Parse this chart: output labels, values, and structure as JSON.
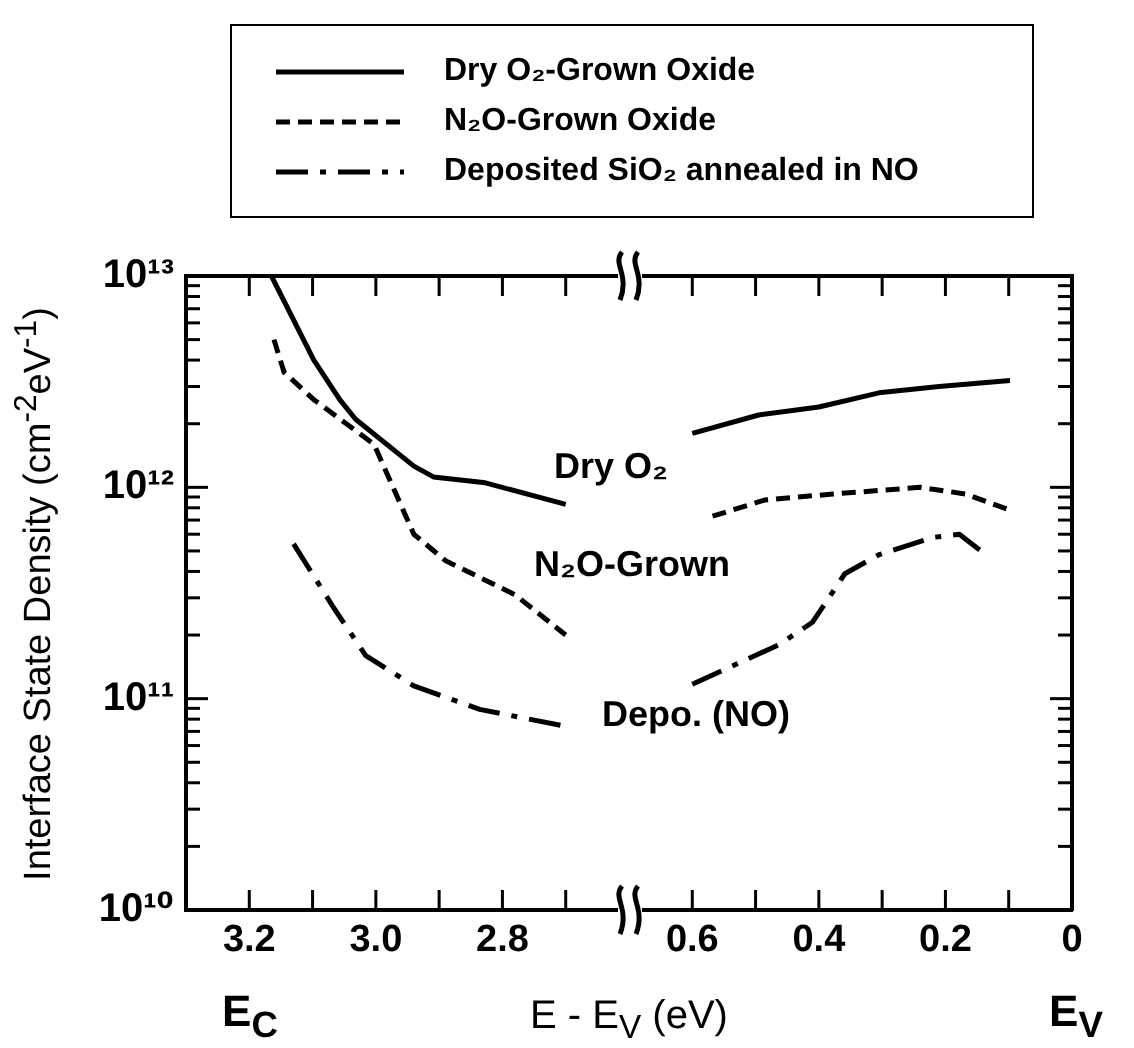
{
  "chart_data": [
    {
      "type": "line",
      "xlabel": "E - E$_{V}$ (eV)",
      "ylabel": "Interface State Density (cm$^{-2}$eV$^{-1}$)",
      "legend": "top",
      "log": "y",
      "tick_labels": "xy",
      "xlim": [
        3.3,
        2.6
      ],
      "xticks": [
        {
          "value": 3.2,
          "label": "3.2"
        },
        {
          "value": 3.1,
          "label": null
        },
        {
          "value": 3.0,
          "label": "3.0"
        },
        {
          "value": 2.9,
          "label": null
        },
        {
          "value": 2.8,
          "label": "2.8"
        },
        {
          "value": 2.7,
          "label": null
        }
      ],
      "ylim": [
        10000000000.0,
        10000000000000.0
      ],
      "yticks": [
        {
          "value": 10000000000.0,
          "label": "10¹⁰"
        },
        {
          "value": 20000000000.0,
          "label": null
        },
        {
          "value": 30000000000.0,
          "label": null
        },
        {
          "value": 40000000000.0,
          "label": null
        },
        {
          "value": 50000000000.0,
          "label": null
        },
        {
          "value": 60000000000.0,
          "label": null
        },
        {
          "value": 70000000000.0,
          "label": null
        },
        {
          "value": 80000000000.0,
          "label": null
        },
        {
          "value": 90000000000.0,
          "label": null
        },
        {
          "value": 100000000000.0,
          "label": "10¹¹"
        },
        {
          "value": 200000000000.0,
          "label": null
        },
        {
          "value": 300000000000.0,
          "label": null
        },
        {
          "value": 400000000000.0,
          "label": null
        },
        {
          "value": 500000000000.0,
          "label": null
        },
        {
          "value": 600000000000.0,
          "label": null
        },
        {
          "value": 700000000000.0,
          "label": null
        },
        {
          "value": 800000000000.0,
          "label": null
        },
        {
          "value": 900000000000.0,
          "label": null
        },
        {
          "value": 1000000000000.0,
          "label": "10¹²"
        },
        {
          "value": 2000000000000.0,
          "label": null
        },
        {
          "value": 3000000000000.0,
          "label": null
        },
        {
          "value": 4000000000000.0,
          "label": null
        },
        {
          "value": 5000000000000.0,
          "label": null
        },
        {
          "value": 6000000000000.0,
          "label": null
        },
        {
          "value": 7000000000000.0,
          "label": null
        },
        {
          "value": 8000000000000.0,
          "label": null
        },
        {
          "value": 9000000000000.0,
          "label": null
        },
        {
          "value": 10000000000000.0,
          "label": "10¹³"
        }
      ],
      "series": [
        {
          "name": "Dry O₂-Grown Oxide",
          "color": "#000000",
          "line_style": "solid",
          "x": [
            3.165,
            3.098,
            3.057,
            3.032,
            2.94,
            2.909,
            2.827,
            2.7
          ],
          "values": [
            10000000000000.0,
            4000000000000.0,
            2600000000000.0,
            2100000000000.0,
            1260000000000.0,
            1120000000000.0,
            1050000000000.0,
            830000000000.0
          ]
        },
        {
          "name": "N₂O-Grown Oxide",
          "color": "#000000",
          "line_style": "dashed",
          "x": [
            3.161,
            3.145,
            3.098,
            3.003,
            2.94,
            2.89,
            2.78,
            2.7
          ],
          "values": [
            5000000000000.0,
            3500000000000.0,
            2600000000000.0,
            1600000000000.0,
            600000000000.0,
            450000000000.0,
            310000000000.0,
            200000000000.0
          ]
        },
        {
          "name": "Deposited SiO₂ annealed in NO",
          "color": "#000000",
          "line_style": "dashdot",
          "x": [
            3.13,
            3.067,
            3.016,
            2.94,
            2.836,
            2.7
          ],
          "values": [
            540000000000.0,
            270000000000.0,
            160000000000.0,
            115000000000.0,
            89000000000.0,
            74000000000.0
          ]
        }
      ],
      "annotations": [
        "Dry O₂",
        "N₂O-Grown",
        "Depo. (NO)",
        "E$_{C}$"
      ]
    },
    {
      "type": "line",
      "log": "y",
      "tick_labels": "x",
      "xlim": [
        0.7,
        0
      ],
      "xticks": [
        {
          "value": 0.6,
          "label": "0.6"
        },
        {
          "value": 0.5,
          "label": null
        },
        {
          "value": 0.4,
          "label": "0.4"
        },
        {
          "value": 0.3,
          "label": null
        },
        {
          "value": 0.2,
          "label": "0.2"
        },
        {
          "value": 0.1,
          "label": null
        },
        0
      ],
      "ylim": [
        10000000000.0,
        10000000000000.0
      ],
      "yticks": [
        {
          "value": 10000000000.0,
          "label": null
        },
        {
          "value": 20000000000.0,
          "label": null
        },
        {
          "value": 30000000000.0,
          "label": null
        },
        {
          "value": 40000000000.0,
          "label": null
        },
        {
          "value": 50000000000.0,
          "label": null
        },
        {
          "value": 60000000000.0,
          "label": null
        },
        {
          "value": 70000000000.0,
          "label": null
        },
        {
          "value": 80000000000.0,
          "label": null
        },
        {
          "value": 90000000000.0,
          "label": null
        },
        {
          "value": 100000000000.0,
          "label": null
        },
        {
          "value": 200000000000.0,
          "label": null
        },
        {
          "value": 300000000000.0,
          "label": null
        },
        {
          "value": 400000000000.0,
          "label": null
        },
        {
          "value": 500000000000.0,
          "label": null
        },
        {
          "value": 600000000000.0,
          "label": null
        },
        {
          "value": 700000000000.0,
          "label": null
        },
        {
          "value": 800000000000.0,
          "label": null
        },
        {
          "value": 900000000000.0,
          "label": null
        },
        {
          "value": 1000000000000.0,
          "label": null
        },
        {
          "value": 2000000000000.0,
          "label": null
        },
        {
          "value": 3000000000000.0,
          "label": null
        },
        {
          "value": 4000000000000.0,
          "label": null
        },
        {
          "value": 5000000000000.0,
          "label": null
        },
        {
          "value": 6000000000000.0,
          "label": null
        },
        {
          "value": 7000000000000.0,
          "label": null
        },
        {
          "value": 8000000000000.0,
          "label": null
        },
        {
          "value": 9000000000000.0,
          "label": null
        },
        {
          "value": 10000000000000.0,
          "label": null
        }
      ],
      "series": [
        {
          "color": "#000000",
          "line_style": "solid",
          "x": [
            0.6,
            0.495,
            0.4,
            0.305,
            0.21,
            0.098
          ],
          "values": [
            1800000000000.0,
            2200000000000.0,
            2400000000000.0,
            2800000000000.0,
            3000000000000.0,
            3200000000000.0
          ]
        },
        {
          "color": "#000000",
          "line_style": "dashed",
          "x": [
            0.568,
            0.486,
            0.378,
            0.24,
            0.168,
            0.098
          ],
          "values": [
            730000000000.0,
            870000000000.0,
            930000000000.0,
            1000000000000.0,
            930000000000.0,
            780000000000.0
          ]
        },
        {
          "color": "#000000",
          "line_style": "dashdot",
          "x": [
            0.6,
            0.463,
            0.41,
            0.359,
            0.305,
            0.219,
            0.178,
            0.14
          ],
          "values": [
            117000000000.0,
            180000000000.0,
            230000000000.0,
            390000000000.0,
            480000000000.0,
            580000000000.0,
            600000000000.0,
            490000000000.0
          ]
        }
      ],
      "annotations": [
        "E$_{V}$"
      ]
    }
  ]
}
